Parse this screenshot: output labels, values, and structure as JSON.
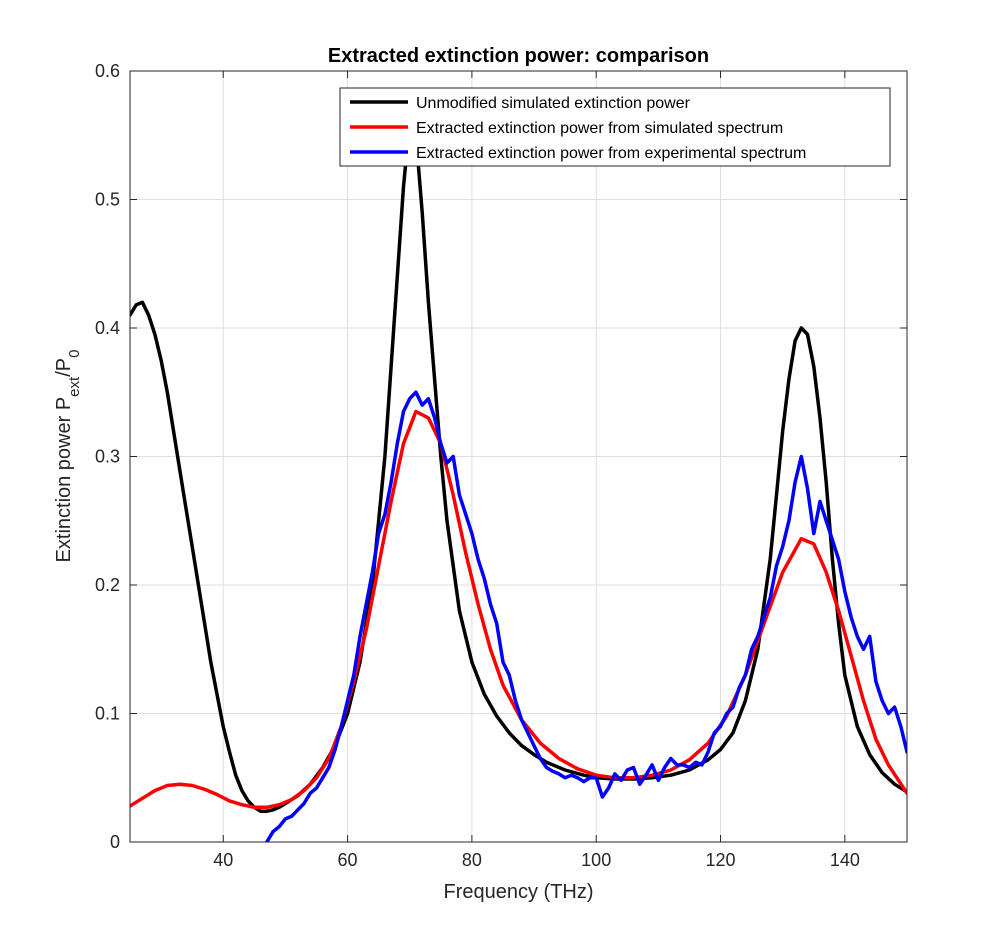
{
  "chart_data": {
    "type": "line",
    "title": "Extracted extinction power: comparison",
    "xlabel": "Frequency (THz)",
    "ylabel": {
      "base": "Extinction power P",
      "sub1": "ext",
      "mid": "/P",
      "sub2": "0"
    },
    "xlim": [
      25,
      150
    ],
    "ylim": [
      0,
      0.6
    ],
    "xticks": [
      40,
      60,
      80,
      100,
      120,
      140
    ],
    "yticks": [
      0,
      0.1,
      0.2,
      0.3,
      0.4,
      0.5,
      0.6
    ],
    "ytick_labels": [
      "0",
      "0.1",
      "0.2",
      "0.3",
      "0.4",
      "0.5",
      "0.6"
    ],
    "grid": true,
    "legend_location": "top-right",
    "series": [
      {
        "name": "Unmodified simulated extinction power",
        "color": "#000000",
        "x": [
          25,
          26,
          27,
          28,
          29,
          30,
          31,
          32,
          33,
          34,
          35,
          36,
          37,
          38,
          39,
          40,
          41,
          42,
          43,
          44,
          45,
          46,
          47,
          48,
          49,
          50,
          52,
          54,
          56,
          58,
          60,
          62,
          64,
          66,
          67,
          68,
          69,
          70,
          71,
          72,
          73,
          74,
          75,
          76,
          78,
          80,
          82,
          84,
          86,
          88,
          90,
          92,
          95,
          98,
          100,
          103,
          106,
          109,
          112,
          115,
          118,
          120,
          122,
          124,
          126,
          128,
          129,
          130,
          131,
          132,
          133,
          134,
          135,
          136,
          137,
          138,
          139,
          140,
          142,
          144,
          146,
          148,
          150
        ],
        "y": [
          0.41,
          0.418,
          0.42,
          0.41,
          0.395,
          0.375,
          0.35,
          0.32,
          0.29,
          0.26,
          0.23,
          0.2,
          0.17,
          0.14,
          0.115,
          0.09,
          0.07,
          0.052,
          0.04,
          0.032,
          0.027,
          0.024,
          0.024,
          0.025,
          0.027,
          0.03,
          0.036,
          0.045,
          0.058,
          0.075,
          0.1,
          0.14,
          0.2,
          0.3,
          0.37,
          0.44,
          0.51,
          0.56,
          0.55,
          0.49,
          0.42,
          0.36,
          0.3,
          0.25,
          0.18,
          0.14,
          0.115,
          0.098,
          0.085,
          0.075,
          0.068,
          0.062,
          0.056,
          0.052,
          0.05,
          0.049,
          0.049,
          0.05,
          0.052,
          0.056,
          0.064,
          0.072,
          0.085,
          0.11,
          0.15,
          0.22,
          0.27,
          0.32,
          0.36,
          0.39,
          0.4,
          0.395,
          0.37,
          0.33,
          0.28,
          0.22,
          0.17,
          0.13,
          0.09,
          0.068,
          0.054,
          0.045,
          0.039
        ]
      },
      {
        "name": "Extracted extinction power from simulated spectrum",
        "color": "#ff0000",
        "x": [
          25,
          27,
          29,
          31,
          33,
          35,
          37,
          39,
          41,
          43,
          45,
          47,
          49,
          51,
          53,
          55,
          57,
          59,
          61,
          63,
          65,
          67,
          69,
          71,
          73,
          75,
          77,
          79,
          81,
          83,
          85,
          88,
          91,
          94,
          97,
          100,
          103,
          106,
          109,
          112,
          115,
          118,
          121,
          124,
          127,
          130,
          133,
          135,
          137,
          139,
          141,
          143,
          145,
          147,
          150
        ],
        "y": [
          0.028,
          0.034,
          0.04,
          0.044,
          0.045,
          0.044,
          0.041,
          0.037,
          0.032,
          0.029,
          0.027,
          0.027,
          0.029,
          0.033,
          0.04,
          0.05,
          0.065,
          0.09,
          0.125,
          0.165,
          0.215,
          0.265,
          0.31,
          0.335,
          0.33,
          0.31,
          0.27,
          0.225,
          0.185,
          0.15,
          0.122,
          0.095,
          0.077,
          0.065,
          0.057,
          0.052,
          0.05,
          0.05,
          0.052,
          0.056,
          0.064,
          0.077,
          0.098,
          0.13,
          0.17,
          0.21,
          0.236,
          0.232,
          0.21,
          0.18,
          0.145,
          0.11,
          0.08,
          0.06,
          0.038
        ]
      },
      {
        "name": "Extracted extinction power from experimental spectrum",
        "color": "#0000ff",
        "x": [
          47,
          48,
          49,
          50,
          51,
          52,
          53,
          54,
          55,
          56,
          57,
          58,
          59,
          60,
          61,
          62,
          63,
          64,
          65,
          66,
          67,
          68,
          69,
          70,
          71,
          72,
          73,
          74,
          75,
          76,
          77,
          78,
          79,
          80,
          81,
          82,
          83,
          84,
          85,
          86,
          87,
          88,
          89,
          90,
          91,
          92,
          93,
          94,
          95,
          96,
          97,
          98,
          99,
          100,
          101,
          102,
          103,
          104,
          105,
          106,
          107,
          108,
          109,
          110,
          111,
          112,
          113,
          114,
          115,
          116,
          117,
          118,
          119,
          120,
          121,
          122,
          123,
          124,
          125,
          126,
          127,
          128,
          129,
          130,
          131,
          132,
          133,
          134,
          135,
          136,
          137,
          138,
          139,
          140,
          141,
          142,
          143,
          144,
          145,
          146,
          147,
          148,
          149,
          150
        ],
        "y": [
          0.0,
          0.008,
          0.012,
          0.018,
          0.02,
          0.025,
          0.03,
          0.038,
          0.042,
          0.05,
          0.058,
          0.072,
          0.09,
          0.11,
          0.13,
          0.16,
          0.185,
          0.21,
          0.24,
          0.255,
          0.28,
          0.31,
          0.335,
          0.345,
          0.35,
          0.34,
          0.345,
          0.33,
          0.31,
          0.295,
          0.3,
          0.27,
          0.255,
          0.24,
          0.22,
          0.205,
          0.185,
          0.17,
          0.14,
          0.13,
          0.11,
          0.095,
          0.085,
          0.075,
          0.065,
          0.058,
          0.055,
          0.053,
          0.05,
          0.052,
          0.05,
          0.047,
          0.05,
          0.05,
          0.035,
          0.042,
          0.053,
          0.048,
          0.056,
          0.058,
          0.045,
          0.052,
          0.06,
          0.048,
          0.058,
          0.065,
          0.06,
          0.06,
          0.058,
          0.062,
          0.06,
          0.07,
          0.085,
          0.09,
          0.1,
          0.105,
          0.12,
          0.13,
          0.15,
          0.16,
          0.175,
          0.19,
          0.215,
          0.23,
          0.25,
          0.28,
          0.3,
          0.275,
          0.24,
          0.265,
          0.25,
          0.235,
          0.22,
          0.195,
          0.175,
          0.16,
          0.15,
          0.16,
          0.125,
          0.11,
          0.1,
          0.105,
          0.09,
          0.07
        ]
      }
    ]
  }
}
